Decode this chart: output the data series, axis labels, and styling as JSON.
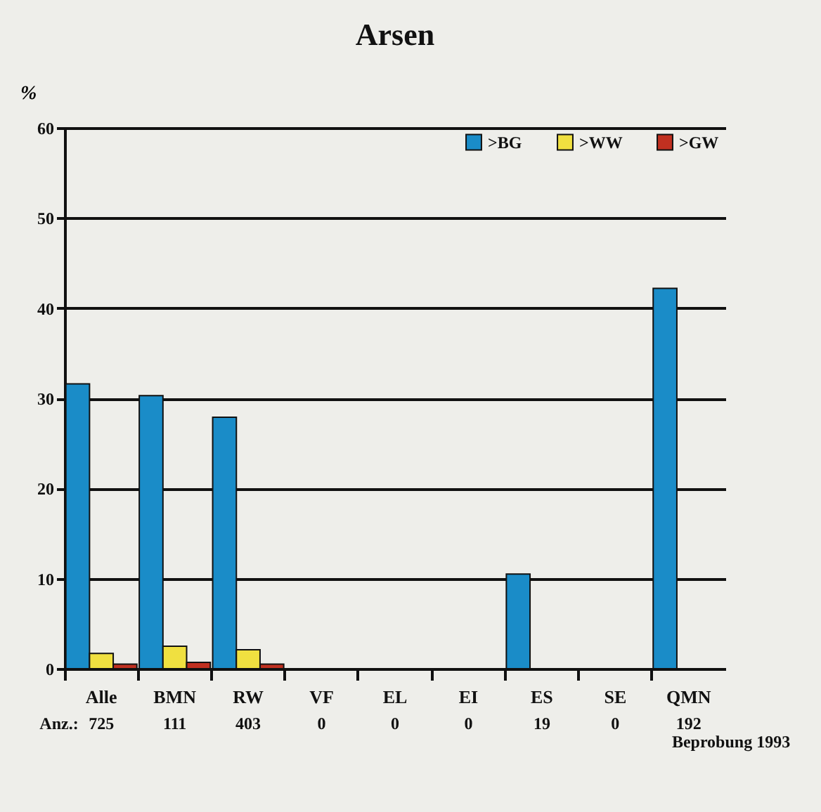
{
  "chart_data": {
    "type": "bar",
    "title": "Arsen",
    "ylabel": "%",
    "categories": [
      "Alle",
      "BMN",
      "RW",
      "VF",
      "EL",
      "EI",
      "ES",
      "SE",
      "QMN"
    ],
    "series": [
      {
        "name": ">BG",
        "color": "#1a8cc8",
        "values": [
          31.6,
          30.3,
          27.9,
          null,
          null,
          null,
          10.5,
          null,
          42.2
        ]
      },
      {
        "name": ">WW",
        "color": "#f0e040",
        "values": [
          1.7,
          2.5,
          2.1,
          null,
          null,
          null,
          null,
          null,
          null
        ]
      },
      {
        "name": ">GW",
        "color": "#c03020",
        "values": [
          0.5,
          0.7,
          0.5,
          null,
          null,
          null,
          null,
          null,
          null
        ]
      }
    ],
    "ylim": [
      0,
      60
    ],
    "yticks": [
      0,
      10,
      20,
      30,
      40,
      50,
      60
    ],
    "grid": "y",
    "legend": "top right",
    "annotations": [
      "Anz.:",
      "725",
      "111",
      "403",
      "0",
      "0",
      "0",
      "19",
      "0",
      "192",
      "Beprobung 1993"
    ]
  }
}
